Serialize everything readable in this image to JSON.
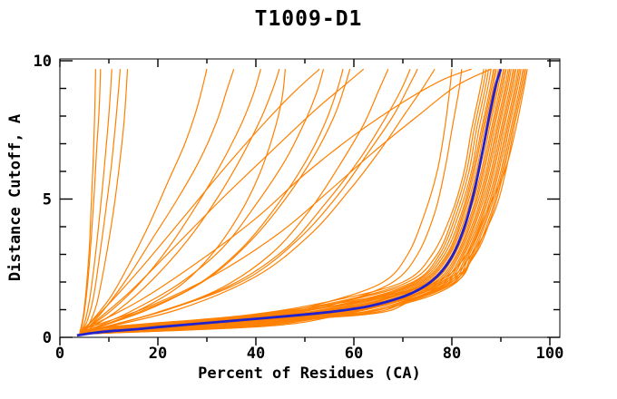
{
  "chart_data": {
    "type": "line",
    "title": "T1009-D1",
    "xlabel": "Percent of Residues (CA)",
    "ylabel": "Distance Cutoff, A",
    "xlim": [
      0,
      102
    ],
    "ylim": [
      0,
      10.07
    ],
    "grid": false,
    "legend": "none",
    "x_major_ticks": [
      0,
      20,
      40,
      60,
      80,
      100
    ],
    "x_tick_labels": [
      "0",
      "20",
      "40",
      "60",
      "80",
      "100"
    ],
    "x_minor_ticks": [
      10,
      30,
      50,
      70,
      90
    ],
    "y_major_ticks": [
      0,
      5,
      10
    ],
    "y_tick_labels": [
      "0",
      "5",
      "10"
    ],
    "y_minor_ticks": [
      1,
      2,
      3,
      4,
      6,
      7,
      8,
      9
    ],
    "model_color": "#ff8000",
    "highlight_color": "#2222cc",
    "axis_color": "#000000",
    "highlight_series": {
      "name": "highlighted-model",
      "pts": [
        [
          3.5,
          0.07
        ],
        [
          6,
          0.14
        ],
        [
          10,
          0.22
        ],
        [
          16,
          0.3
        ],
        [
          22,
          0.4
        ],
        [
          30,
          0.52
        ],
        [
          38,
          0.64
        ],
        [
          46,
          0.76
        ],
        [
          52,
          0.86
        ],
        [
          58,
          0.98
        ],
        [
          63,
          1.12
        ],
        [
          67,
          1.3
        ],
        [
          70.5,
          1.5
        ],
        [
          73.5,
          1.75
        ],
        [
          76,
          2.05
        ],
        [
          78,
          2.4
        ],
        [
          79.8,
          2.85
        ],
        [
          81.2,
          3.35
        ],
        [
          82.5,
          3.95
        ],
        [
          83.6,
          4.6
        ],
        [
          84.6,
          5.3
        ],
        [
          85.5,
          6.05
        ],
        [
          86.4,
          6.85
        ],
        [
          87.3,
          7.7
        ],
        [
          88.2,
          8.5
        ],
        [
          89.1,
          9.2
        ],
        [
          90,
          9.7
        ]
      ]
    },
    "bundle_y_levels": [
      0.12,
      0.4,
      0.8,
      1.3,
      2,
      3,
      4.5,
      6,
      7.5,
      9,
      9.7
    ],
    "bundle_x_values": [
      [
        4,
        12,
        38,
        55,
        70,
        76,
        80,
        82.5,
        84,
        85.8,
        86.5
      ],
      [
        4,
        14,
        40,
        57,
        71,
        77,
        80.5,
        83,
        84.5,
        86.3,
        87
      ],
      [
        5,
        16,
        42,
        58,
        72,
        77.5,
        81,
        83.5,
        85,
        86.8,
        87.5
      ],
      [
        4,
        18,
        44,
        60,
        72.5,
        78,
        81.5,
        84,
        85.5,
        87.3,
        88
      ],
      [
        5,
        20,
        46,
        61,
        73,
        78.5,
        82,
        84.3,
        86,
        87.8,
        88.5
      ],
      [
        4,
        22,
        47,
        62,
        73.5,
        79,
        82.3,
        84.6,
        86.3,
        88.1,
        88.8
      ],
      [
        5,
        24,
        48,
        63,
        74,
        79.3,
        82.6,
        85,
        86.6,
        88.4,
        89.1
      ],
      [
        4,
        26,
        49,
        64,
        74.5,
        79.6,
        83,
        85.3,
        87,
        88.8,
        89.5
      ],
      [
        5,
        28,
        50,
        64.5,
        75,
        80,
        83.3,
        85.6,
        87.3,
        89.1,
        89.8
      ],
      [
        4,
        30,
        51,
        65,
        75.5,
        80.3,
        83.6,
        86,
        87.6,
        89.4,
        90.1
      ],
      [
        5,
        32,
        52,
        66,
        76,
        80.6,
        84,
        86.3,
        88,
        89.8,
        90.5
      ],
      [
        4,
        34,
        53,
        66.5,
        76.5,
        81,
        84.3,
        86.6,
        88.3,
        90.1,
        90.8
      ],
      [
        5,
        36,
        54,
        67,
        77,
        81.3,
        84.6,
        87,
        88.6,
        90.4,
        91.1
      ],
      [
        4,
        38,
        55,
        68,
        77.5,
        81.6,
        85,
        87.3,
        89,
        90.8,
        91.5
      ],
      [
        5,
        40,
        56,
        68.5,
        78,
        82,
        85.3,
        87.6,
        89.3,
        91.1,
        91.8
      ],
      [
        4,
        42,
        57,
        69,
        78.5,
        82.3,
        85.6,
        88,
        89.6,
        91.4,
        92.1
      ],
      [
        5,
        35,
        58,
        70,
        79,
        82.6,
        86,
        88.3,
        90,
        91.8,
        92.5
      ],
      [
        4,
        28,
        59,
        70.5,
        79.5,
        83,
        86.3,
        88.6,
        90.3,
        92.1,
        92.8
      ],
      [
        5,
        22,
        60,
        71,
        80,
        83.3,
        86.6,
        89,
        90.6,
        92.4,
        93.1
      ],
      [
        4,
        17,
        61,
        71.5,
        80.5,
        83.6,
        87,
        89.3,
        91,
        92.8,
        93.5
      ],
      [
        5,
        13,
        56,
        72,
        81,
        84,
        87.3,
        89.6,
        91.3,
        93.1,
        93.8
      ],
      [
        4,
        11,
        50,
        69,
        80.8,
        84.3,
        87.6,
        90,
        91.6,
        93.4,
        94.1
      ],
      [
        5,
        15,
        45,
        66,
        79.8,
        84.6,
        88,
        90.3,
        92,
        93.8,
        94.5
      ],
      [
        4,
        19,
        41,
        62,
        78.8,
        84.8,
        88.3,
        90.6,
        92.3,
        94.1,
        94.8
      ],
      [
        5,
        23,
        39,
        59,
        77.8,
        84,
        88.6,
        91,
        92.6,
        94.4,
        95.1
      ],
      [
        4,
        27,
        43,
        61,
        76.8,
        83,
        87,
        90.8,
        93,
        94.7,
        95.4
      ],
      [
        4,
        20,
        45,
        58,
        68,
        73,
        76.5,
        78.5,
        80,
        81.5,
        82
      ],
      [
        5,
        18,
        42,
        55,
        66,
        71,
        74.5,
        77,
        78.5,
        79.6,
        80
      ]
    ],
    "outlier_pts": [
      [
        [
          4,
          0.1
        ],
        [
          4.8,
          0.8
        ],
        [
          5.4,
          1.8
        ],
        [
          6,
          3.2
        ],
        [
          6.4,
          4.8
        ],
        [
          6.8,
          6.4
        ],
        [
          7.1,
          8
        ],
        [
          7.3,
          9.7
        ]
      ],
      [
        [
          4,
          0.1
        ],
        [
          4.6,
          0.5
        ],
        [
          5.2,
          1.2
        ],
        [
          5.8,
          2.2
        ],
        [
          6.4,
          3.6
        ],
        [
          7,
          5.2
        ],
        [
          7.5,
          6.8
        ],
        [
          8,
          8.2
        ],
        [
          8.3,
          9.7
        ]
      ],
      [
        [
          4,
          0.1
        ],
        [
          5,
          0.5
        ],
        [
          6,
          1.3
        ],
        [
          7,
          2.6
        ],
        [
          8,
          4.2
        ],
        [
          9,
          6
        ],
        [
          9.8,
          7.6
        ],
        [
          10.3,
          8.8
        ],
        [
          10.6,
          9.7
        ]
      ],
      [
        [
          4,
          0.1
        ],
        [
          5.5,
          0.55
        ],
        [
          6.8,
          1.4
        ],
        [
          8,
          2.8
        ],
        [
          9.3,
          4.5
        ],
        [
          10.5,
          6.2
        ],
        [
          11.4,
          7.8
        ],
        [
          12,
          9
        ],
        [
          12.3,
          9.7
        ]
      ],
      [
        [
          4.5,
          0.1
        ],
        [
          6,
          0.5
        ],
        [
          7.5,
          1.2
        ],
        [
          9,
          2.5
        ],
        [
          10.8,
          4.4
        ],
        [
          12,
          6
        ],
        [
          13,
          7.6
        ],
        [
          13.5,
          8.8
        ],
        [
          13.8,
          9.7
        ]
      ],
      [
        [
          4,
          0.15
        ],
        [
          7,
          0.7
        ],
        [
          10.5,
          1.5
        ],
        [
          14,
          2.6
        ],
        [
          18,
          4
        ],
        [
          22,
          5.6
        ],
        [
          25.5,
          7
        ],
        [
          28,
          8.3
        ],
        [
          30,
          9.7
        ]
      ],
      [
        [
          5,
          0.2
        ],
        [
          9,
          1
        ],
        [
          14,
          2.2
        ],
        [
          19,
          3.6
        ],
        [
          24,
          5
        ],
        [
          28.5,
          6.4
        ],
        [
          32,
          7.8
        ],
        [
          34,
          8.9
        ],
        [
          35.5,
          9.7
        ]
      ],
      [
        [
          4,
          0.15
        ],
        [
          10,
          0.9
        ],
        [
          16,
          1.9
        ],
        [
          22,
          3.2
        ],
        [
          28,
          4.8
        ],
        [
          33,
          6.3
        ],
        [
          37,
          7.7
        ],
        [
          39.5,
          8.8
        ],
        [
          41,
          9.7
        ]
      ],
      [
        [
          5,
          0.2
        ],
        [
          12,
          1
        ],
        [
          19,
          2.1
        ],
        [
          26,
          3.5
        ],
        [
          32,
          5
        ],
        [
          37,
          6.5
        ],
        [
          41,
          7.9
        ],
        [
          43.5,
          9
        ],
        [
          44.8,
          9.7
        ]
      ],
      [
        [
          4,
          0.15
        ],
        [
          14,
          0.8
        ],
        [
          24,
          1.8
        ],
        [
          31,
          3
        ],
        [
          36.5,
          4.4
        ],
        [
          40.5,
          5.8
        ],
        [
          43.5,
          7.3
        ],
        [
          45.3,
          8.6
        ],
        [
          46,
          9.7
        ]
      ],
      [
        [
          5,
          0.2
        ],
        [
          14,
          0.9
        ],
        [
          24,
          1.9
        ],
        [
          33,
          3.2
        ],
        [
          40,
          4.8
        ],
        [
          46,
          6.4
        ],
        [
          50,
          7.8
        ],
        [
          52.5,
          8.9
        ],
        [
          53.8,
          9.7
        ]
      ],
      [
        [
          4,
          0.15
        ],
        [
          16,
          0.9
        ],
        [
          28,
          1.9
        ],
        [
          37,
          3.2
        ],
        [
          44,
          4.7
        ],
        [
          50,
          6.3
        ],
        [
          54,
          7.7
        ],
        [
          56.5,
          8.9
        ],
        [
          57.8,
          9.7
        ]
      ],
      [
        [
          5,
          0.2
        ],
        [
          18,
          1
        ],
        [
          30,
          2.1
        ],
        [
          39,
          3.5
        ],
        [
          46,
          5
        ],
        [
          52,
          6.6
        ],
        [
          56,
          8
        ],
        [
          58,
          9
        ],
        [
          59.2,
          9.7
        ]
      ],
      [
        [
          4,
          0.15
        ],
        [
          18,
          0.8
        ],
        [
          32,
          1.7
        ],
        [
          43,
          3
        ],
        [
          51,
          4.6
        ],
        [
          57,
          6.2
        ],
        [
          62,
          7.7
        ],
        [
          65,
          8.9
        ],
        [
          67,
          9.7
        ]
      ],
      [
        [
          5,
          0.2
        ],
        [
          20,
          0.9
        ],
        [
          35,
          1.9
        ],
        [
          46,
          3.2
        ],
        [
          54,
          4.8
        ],
        [
          61,
          6.4
        ],
        [
          66,
          7.8
        ],
        [
          69.5,
          8.9
        ],
        [
          71.5,
          9.7
        ]
      ],
      [
        [
          4,
          0.15
        ],
        [
          22,
          1
        ],
        [
          38,
          2.1
        ],
        [
          49,
          3.6
        ],
        [
          57,
          5.2
        ],
        [
          63,
          6.7
        ],
        [
          68,
          8
        ],
        [
          71,
          9
        ],
        [
          73,
          9.7
        ]
      ],
      [
        [
          5,
          0.2
        ],
        [
          24,
          1
        ],
        [
          40,
          2.2
        ],
        [
          51,
          3.7
        ],
        [
          59,
          5.3
        ],
        [
          65.5,
          6.8
        ],
        [
          70.5,
          8.1
        ],
        [
          74,
          9
        ],
        [
          76.5,
          9.7
        ]
      ],
      [
        [
          5,
          0.3
        ],
        [
          11,
          1.4
        ],
        [
          18,
          2.8
        ],
        [
          26,
          4.5
        ],
        [
          34,
          6.2
        ],
        [
          42,
          7.8
        ],
        [
          48,
          8.9
        ],
        [
          53,
          9.7
        ]
      ],
      [
        [
          6,
          0.4
        ],
        [
          14,
          1.6
        ],
        [
          23,
          3.2
        ],
        [
          33,
          5
        ],
        [
          43,
          6.7
        ],
        [
          52,
          8.2
        ],
        [
          58,
          9.1
        ],
        [
          62,
          9.7
        ]
      ],
      [
        [
          5,
          0.3
        ],
        [
          16,
          1.3
        ],
        [
          28,
          2.7
        ],
        [
          40,
          4.3
        ],
        [
          50,
          5.9
        ],
        [
          60,
          7.3
        ],
        [
          70,
          8.5
        ],
        [
          78,
          9.3
        ],
        [
          84,
          9.7
        ]
      ],
      [
        [
          4,
          0.25
        ],
        [
          18,
          1.1
        ],
        [
          32,
          2.3
        ],
        [
          45,
          3.8
        ],
        [
          55,
          5.3
        ],
        [
          64,
          6.7
        ],
        [
          73,
          8
        ],
        [
          81,
          9.1
        ],
        [
          88,
          9.7
        ]
      ]
    ]
  }
}
